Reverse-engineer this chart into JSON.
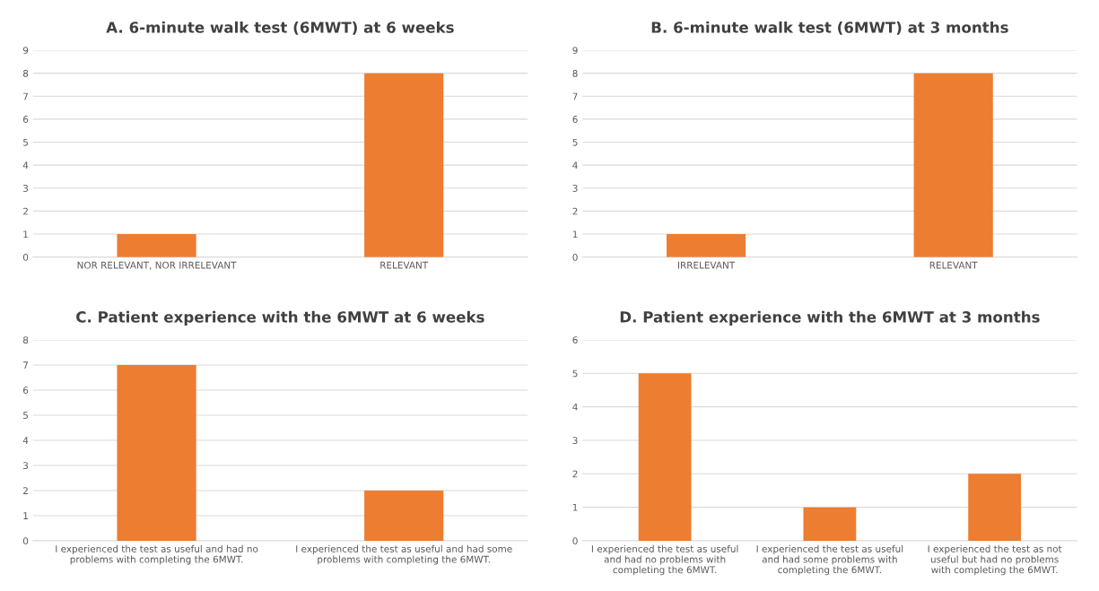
{
  "chart_data": [
    {
      "type": "bar",
      "title": "A. 6-minute walk test (6MWT) at 6 weeks",
      "categories": [
        "NOR RELEVANT, NOR IRRELEVANT",
        "RELEVANT"
      ],
      "values": [
        1,
        8
      ],
      "color": "#ed7d31",
      "ylim": [
        0,
        9
      ],
      "yticks": [
        0,
        1,
        2,
        3,
        4,
        5,
        6,
        7,
        8,
        9
      ],
      "grid": "y"
    },
    {
      "type": "bar",
      "title": "B. 6-minute walk test (6MWT) at 3 months",
      "categories": [
        "IRRELEVANT",
        "RELEVANT"
      ],
      "values": [
        1,
        8
      ],
      "color": "#ed7d31",
      "ylim": [
        0,
        9
      ],
      "yticks": [
        0,
        1,
        2,
        3,
        4,
        5,
        6,
        7,
        8,
        9
      ],
      "grid": "y"
    },
    {
      "type": "bar",
      "title": "C. Patient experience with the 6MWT at 6 weeks",
      "categories": [
        "I experienced the test as useful and had no\nproblems with completing the 6MWT.",
        "I experienced the test as useful and had some\nproblems with completing the 6MWT."
      ],
      "values": [
        7,
        2
      ],
      "color": "#ed7d31",
      "ylim": [
        0,
        8
      ],
      "yticks": [
        0,
        1,
        2,
        3,
        4,
        5,
        6,
        7,
        8
      ],
      "grid": "y"
    },
    {
      "type": "bar",
      "title": "D. Patient experience with the 6MWT at 3 months",
      "categories": [
        "I experienced the test as useful\nand had no problems with\ncompleting the 6MWT.",
        "I experienced the test as useful\nand had some problems with\ncompleting the 6MWT.",
        "I experienced the test as not\nuseful but had no problems\nwith completing the 6MWT."
      ],
      "values": [
        5,
        1,
        2
      ],
      "color": "#ed7d31",
      "ylim": [
        0,
        6
      ],
      "yticks": [
        0,
        1,
        2,
        3,
        4,
        5,
        6
      ],
      "grid": "y"
    }
  ]
}
